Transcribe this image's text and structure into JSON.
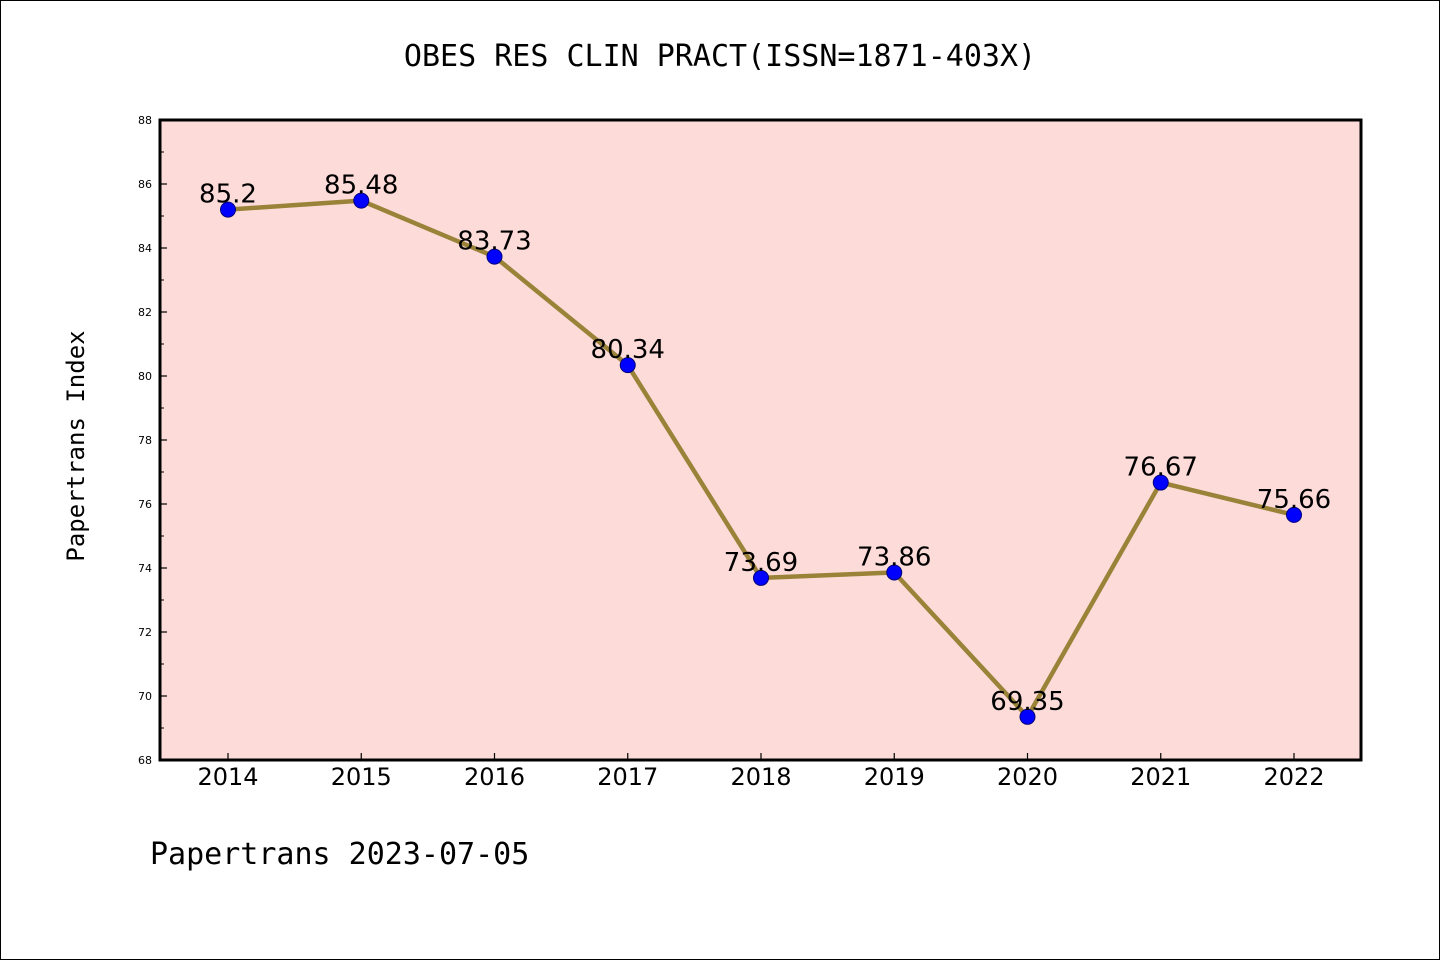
{
  "chart_data": {
    "type": "line",
    "title": "OBES RES CLIN PRACT(ISSN=1871-403X)",
    "xlabel": "",
    "ylabel": "Papertrans Index",
    "categories": [
      "2014",
      "2015",
      "2016",
      "2017",
      "2018",
      "2019",
      "2020",
      "2021",
      "2022"
    ],
    "values": [
      85.2,
      85.48,
      83.73,
      80.34,
      73.69,
      73.86,
      69.35,
      76.67,
      75.66
    ],
    "data_labels": [
      "85.2",
      "85.48",
      "83.73",
      "80.34",
      "73.69",
      "73.86",
      "69.35",
      "76.67",
      "75.66"
    ],
    "ylim": [
      68,
      88
    ],
    "yticks": [
      "68",
      "70",
      "72",
      "74",
      "76",
      "78",
      "80",
      "82",
      "84",
      "86",
      "88"
    ],
    "grid": false,
    "colors": {
      "plot_background": "#fddbd9",
      "line": "#9a8238",
      "marker": "#0000ff"
    }
  },
  "footer": "Papertrans 2023-07-05"
}
